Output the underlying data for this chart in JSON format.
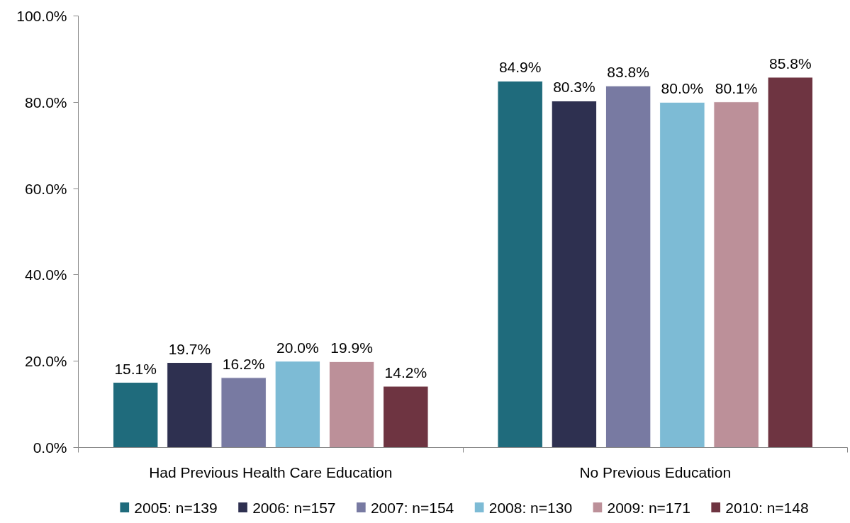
{
  "chart_data": {
    "type": "bar",
    "categories": [
      "Had Previous Health Care Education",
      "No Previous Education"
    ],
    "series": [
      {
        "name": "2005: n=139",
        "color": "#1f6b7c",
        "values": [
          15.1,
          84.9
        ],
        "value_labels": [
          "15.1%",
          "84.9%"
        ]
      },
      {
        "name": "2006: n=157",
        "color": "#2e3050",
        "values": [
          19.7,
          80.3
        ],
        "value_labels": [
          "19.7%",
          "80.3%"
        ]
      },
      {
        "name": "2007: n=154",
        "color": "#787aa2",
        "values": [
          16.2,
          83.8
        ],
        "value_labels": [
          "16.2%",
          "83.8%"
        ]
      },
      {
        "name": "2008: n=130",
        "color": "#7dbbd5",
        "values": [
          20.0,
          80.0
        ],
        "value_labels": [
          "20.0%",
          "80.0%"
        ]
      },
      {
        "name": "2009: n=171",
        "color": "#bc9099",
        "values": [
          19.9,
          80.1
        ],
        "value_labels": [
          "19.9%",
          "80.1%"
        ]
      },
      {
        "name": "2010: n=148",
        "color": "#6e3441",
        "values": [
          14.2,
          85.8
        ],
        "value_labels": [
          "14.2%",
          "85.8%"
        ]
      }
    ],
    "ylim": [
      0,
      100
    ],
    "yticks": [
      {
        "value": 0,
        "label": "0.0%"
      },
      {
        "value": 20,
        "label": "20.0%"
      },
      {
        "value": 40,
        "label": "40.0%"
      },
      {
        "value": 60,
        "label": "60.0%"
      },
      {
        "value": 80,
        "label": "80.0%"
      },
      {
        "value": 100,
        "label": "100.0%"
      }
    ],
    "grid": false,
    "legend": "bottom"
  }
}
